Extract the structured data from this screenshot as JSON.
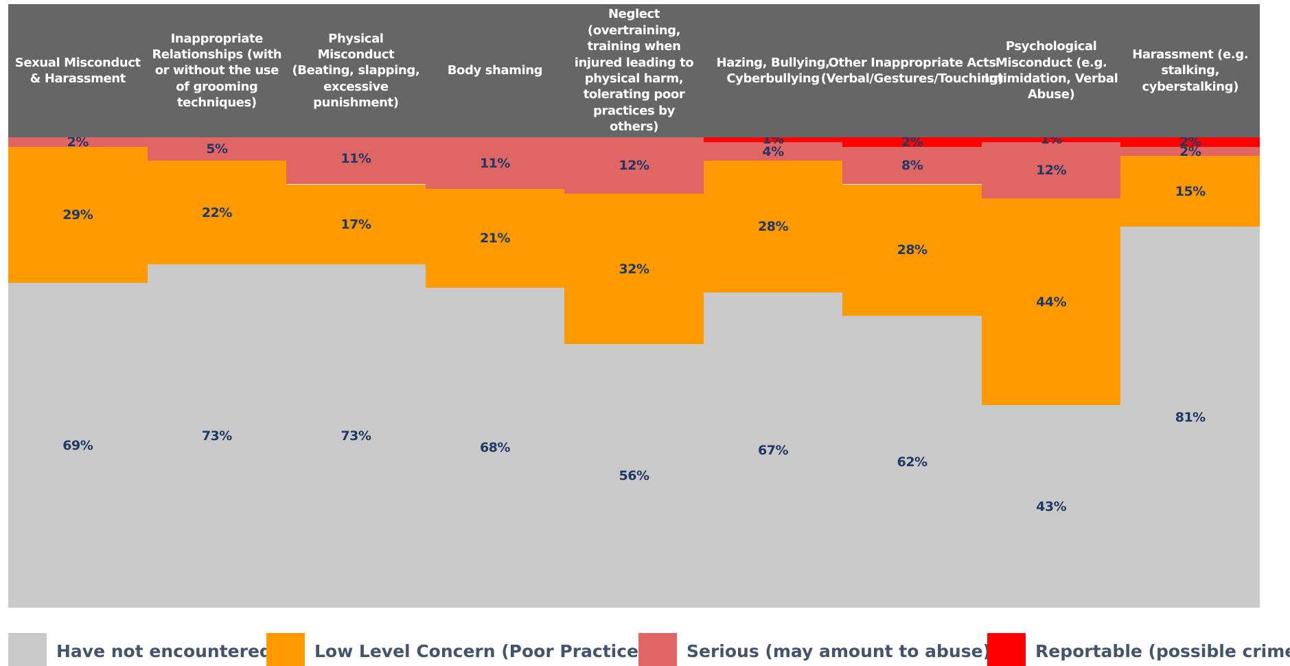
{
  "chart_data": {
    "type": "stacked_bar",
    "categories": [
      "Sexual Misconduct & Harassment",
      "Inappropriate Relationships (with or without the use of grooming techniques)",
      "Physical Misconduct (Beating, slapping, excessive punishment)",
      "Body shaming",
      "Neglect (overtraining, training when injured leading to physical harm, tolerating poor practices by others)",
      "Hazing, Bullying, Cyberbullying",
      "Other Inappropriate Acts (Verbal/Gestures/Touching)",
      "Psychological Misconduct (e.g. Intimidation, Verbal Abuse)",
      "Harassment (e.g. stalking, cyberstalking)"
    ],
    "ylim": [
      0,
      100
    ],
    "series": [
      {
        "name": "Have not encountered",
        "color": "#c9c9c9",
        "values": [
          69,
          73,
          73,
          68,
          56,
          67,
          62,
          43,
          81
        ],
        "value_labels": [
          "69%",
          "73%",
          "73%",
          "68%",
          "56%",
          "67%",
          "62%",
          "43%",
          "81%"
        ]
      },
      {
        "name": "Low Level Concern (Poor Practice)",
        "color": "#ff9900",
        "values": [
          29,
          22,
          17,
          21,
          32,
          28,
          28,
          44,
          15
        ],
        "value_labels": [
          "29%",
          "22%",
          "17%",
          "21%",
          "32%",
          "28%",
          "28%",
          "44%",
          "15%"
        ]
      },
      {
        "name": "Serious (may amount to abuse)",
        "color": "#e06666",
        "values": [
          2,
          5,
          11,
          11,
          12,
          4,
          8,
          12,
          2
        ],
        "value_labels": [
          "2%",
          "5%",
          "11%",
          "11%",
          "12%",
          "4%",
          "8%",
          "12%",
          "2%"
        ]
      },
      {
        "name": "Reportable (possible crimes)",
        "color": "#ff0000",
        "values": [
          null,
          null,
          null,
          null,
          null,
          1,
          2,
          1,
          2
        ],
        "value_labels": [
          null,
          null,
          null,
          null,
          null,
          "1%",
          "2%",
          "1%",
          "2%"
        ]
      }
    ],
    "legend": "bottom"
  }
}
